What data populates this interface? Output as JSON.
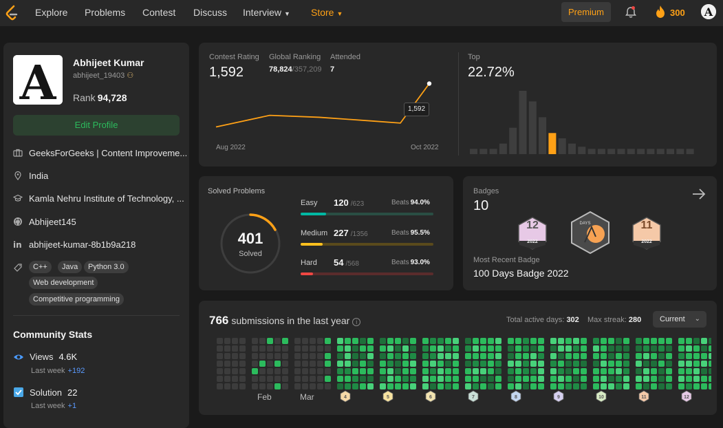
{
  "nav": {
    "links": [
      "Explore",
      "Problems",
      "Contest",
      "Discuss",
      "Interview",
      "Store"
    ],
    "premium": "Premium",
    "streak": "300"
  },
  "profile": {
    "name": "Abhijeet Kumar",
    "handle": "abhijeet_19403",
    "rank_label": "Rank",
    "rank": "94,728",
    "edit_label": "Edit Profile",
    "company": "GeeksForGeeks | Content Improveme...",
    "location": "India",
    "school": "Kamla Nehru Institute of Technology, ...",
    "github": "Abhijeet145",
    "linkedin": "abhijeet-kumar-8b1b9a218",
    "skills": [
      "C++",
      "Java",
      "Python 3.0",
      "Web development",
      "Competitive programming"
    ]
  },
  "community": {
    "title": "Community Stats",
    "views_label": "Views",
    "views": "4.6K",
    "views_sub": "Last week",
    "views_inc": "+192",
    "solution_label": "Solution",
    "solution": "22",
    "solution_sub": "Last week",
    "solution_inc": "+1"
  },
  "contest": {
    "rating_label": "Contest Rating",
    "rating": "1,592",
    "ranking_label": "Global Ranking",
    "ranking": "78,824",
    "ranking_total": "/357,209",
    "attended_label": "Attended",
    "attended": "7",
    "top_label": "Top",
    "top": "22.72%",
    "tooltip": "1,592",
    "x_start": "Aug 2022",
    "x_end": "Oct 2022"
  },
  "chart_data": {
    "type": "line",
    "x": [
      "Aug 2022",
      "",
      "",
      "",
      "",
      "",
      "Oct 2022"
    ],
    "values": [
      1480,
      1510,
      1505,
      1500,
      1495,
      1490,
      1592
    ],
    "histogram": [
      1,
      1,
      1,
      2,
      5,
      12,
      10,
      7,
      4,
      3,
      2,
      1.4,
      1,
      1,
      1,
      1,
      1,
      1,
      1,
      1,
      1,
      1,
      1
    ],
    "highlight_index": 8
  },
  "solved": {
    "title": "Solved Problems",
    "total": "401",
    "total_label": "Solved",
    "easy_label": "Easy",
    "easy": "120",
    "easy_total": "/623",
    "easy_beats": "94.0%",
    "medium_label": "Medium",
    "medium": "227",
    "medium_total": "/1356",
    "medium_beats": "95.5%",
    "hard_label": "Hard",
    "hard": "54",
    "hard_total": "/568",
    "hard_beats": "93.0%",
    "beats_label": "Beats"
  },
  "badges": {
    "title": "Badges",
    "count": "10",
    "badge_12": "12",
    "badge_year": "2022",
    "badge_days": "DAYS",
    "badge_11": "11",
    "recent_label": "Most Recent Badge",
    "recent": "100 Days Badge 2022"
  },
  "submissions": {
    "count": "766",
    "text": "submissions in the last year",
    "active_label": "Total active days:",
    "active": "302",
    "streak_label": "Max streak:",
    "streak": "280",
    "range": "Current",
    "months": [
      "Feb",
      "Mar"
    ],
    "month_badges": [
      "4",
      "5",
      "6",
      "7",
      "8",
      "9",
      "10",
      "11",
      "12"
    ]
  },
  "colors": {
    "accent": "#ffa116",
    "easy": "#00b8a3",
    "medium": "#ffc01e",
    "hard": "#ef4743",
    "green": "#2cbb5d"
  }
}
